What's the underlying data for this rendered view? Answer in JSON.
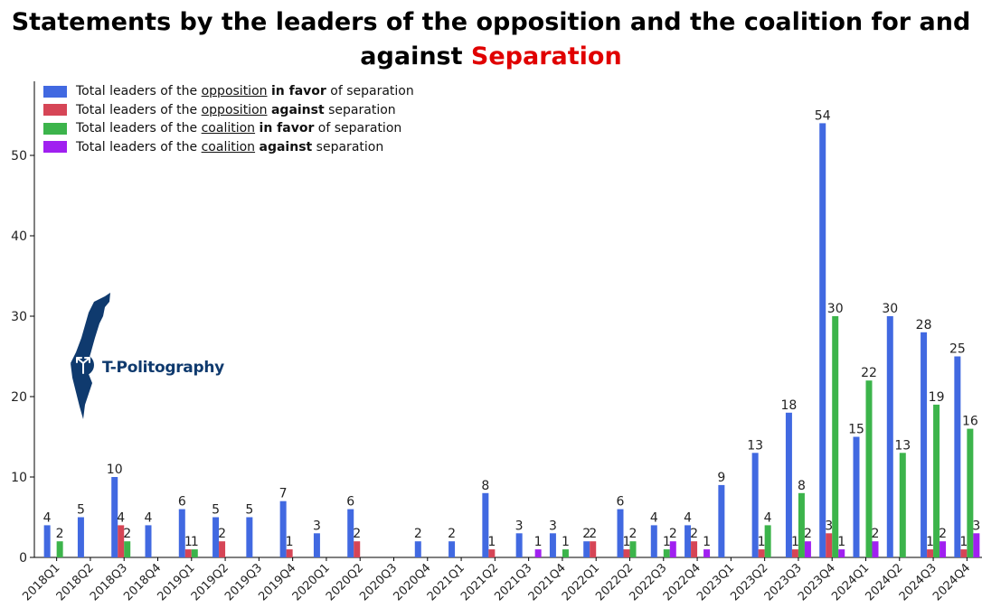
{
  "title": {
    "part1": "Statements by the leaders of the opposition and the coalition for and against ",
    "highlight": "Separation"
  },
  "logo": {
    "text": "T-Politography",
    "icon": "israel-map-icon"
  },
  "legend": [
    {
      "prefix": "Total leaders of the ",
      "group": "opposition",
      "stance": "in favor",
      "suffix": " of separation",
      "color": "#4169e1"
    },
    {
      "prefix": "Total leaders of the ",
      "group": "opposition",
      "stance": "against",
      "suffix": " separation",
      "color": "#d64556"
    },
    {
      "prefix": "Total leaders of the ",
      "group": "coalition",
      "stance": "in favor",
      "suffix": " of separation",
      "color": "#3cb44b"
    },
    {
      "prefix": "Total leaders of the ",
      "group": "coalition",
      "stance": "against",
      "suffix": " separation",
      "color": "#a020f0"
    }
  ],
  "chart_data": {
    "type": "bar",
    "title": "Statements by the leaders of the opposition and the coalition for and against Separation",
    "xlabel": "",
    "ylabel": "",
    "ylim": [
      0,
      58
    ],
    "yticks": [
      0,
      10,
      20,
      30,
      40,
      50
    ],
    "grid": false,
    "legend_position": "top-left",
    "categories": [
      "2018Q1",
      "2018Q2",
      "2018Q3",
      "2018Q4",
      "2019Q1",
      "2019Q2",
      "2019Q3",
      "2019Q4",
      "2020Q1",
      "2020Q2",
      "2020Q3",
      "2020Q4",
      "2021Q1",
      "2021Q2",
      "2021Q3",
      "2021Q4",
      "2022Q1",
      "2022Q2",
      "2022Q3",
      "2022Q4",
      "2023Q1",
      "2023Q2",
      "2023Q3",
      "2023Q4",
      "2024Q1",
      "2024Q2",
      "2024Q3",
      "2024Q4"
    ],
    "series": [
      {
        "name": "Total leaders of the opposition in favor of separation",
        "color": "#4169e1",
        "values": [
          4,
          5,
          10,
          4,
          6,
          5,
          5,
          7,
          3,
          6,
          null,
          2,
          2,
          8,
          3,
          3,
          2,
          6,
          4,
          4,
          9,
          13,
          18,
          54,
          15,
          30,
          28,
          25
        ]
      },
      {
        "name": "Total leaders of the opposition against separation",
        "color": "#d64556",
        "values": [
          null,
          null,
          4,
          null,
          1,
          2,
          null,
          1,
          null,
          2,
          null,
          null,
          null,
          1,
          null,
          null,
          2,
          1,
          null,
          2,
          null,
          1,
          1,
          3,
          null,
          null,
          1,
          1
        ]
      },
      {
        "name": "Total leaders of the coalition in favor of separation",
        "color": "#3cb44b",
        "values": [
          2,
          null,
          2,
          null,
          1,
          null,
          null,
          null,
          null,
          null,
          null,
          null,
          null,
          null,
          null,
          1,
          null,
          2,
          1,
          null,
          null,
          4,
          8,
          30,
          22,
          13,
          19,
          16
        ]
      },
      {
        "name": "Total leaders of the coalition against separation",
        "color": "#a020f0",
        "values": [
          null,
          null,
          null,
          null,
          null,
          null,
          null,
          null,
          null,
          null,
          null,
          null,
          null,
          null,
          1,
          null,
          null,
          null,
          2,
          1,
          null,
          null,
          2,
          1,
          2,
          null,
          2,
          3
        ]
      }
    ]
  }
}
